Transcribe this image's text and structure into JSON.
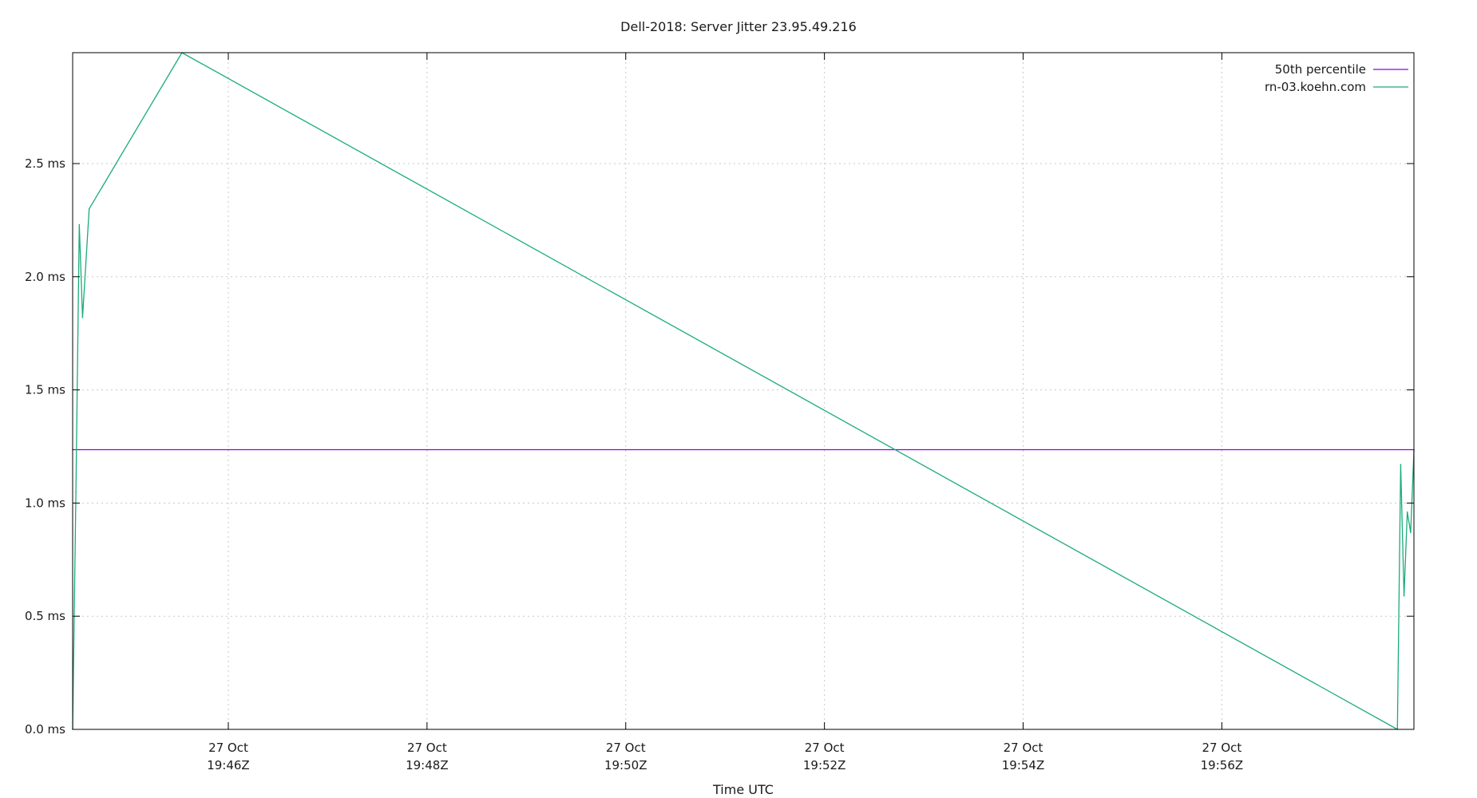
{
  "chart_data": {
    "type": "line",
    "title": "Dell-2018: Server Jitter 23.95.49.216",
    "xlabel": "Time UTC",
    "ylabel": "",
    "x_range": [
      "19:44:26Z",
      "19:57:56Z"
    ],
    "ylim": [
      0,
      2.99
    ],
    "y_unit": "ms",
    "y_ticks": [
      {
        "value": 0.0,
        "label": "0.0 ms"
      },
      {
        "value": 0.5,
        "label": "0.5 ms"
      },
      {
        "value": 1.0,
        "label": "1.0 ms"
      },
      {
        "value": 1.5,
        "label": "1.5 ms"
      },
      {
        "value": 2.0,
        "label": "2.0 ms"
      },
      {
        "value": 2.5,
        "label": "2.5 ms"
      }
    ],
    "x_ticks": [
      {
        "time": "19:46:00Z",
        "line1": "27 Oct",
        "line2": "19:46Z"
      },
      {
        "time": "19:48:00Z",
        "line1": "27 Oct",
        "line2": "19:48Z"
      },
      {
        "time": "19:50:00Z",
        "line1": "27 Oct",
        "line2": "19:50Z"
      },
      {
        "time": "19:52:00Z",
        "line1": "27 Oct",
        "line2": "19:52Z"
      },
      {
        "time": "19:54:00Z",
        "line1": "27 Oct",
        "line2": "19:54Z"
      },
      {
        "time": "19:56:00Z",
        "line1": "27 Oct",
        "line2": "19:56Z"
      }
    ],
    "grid": true,
    "legend_position": "top-right",
    "series": [
      {
        "name": "50th percentile",
        "color": "#9400d3",
        "points": [
          {
            "x": "19:44:26Z",
            "y": 1.236
          },
          {
            "x": "19:57:56Z",
            "y": 1.236
          }
        ]
      },
      {
        "name": "rn-03.koehn.com",
        "color": "#1aab7d",
        "points": [
          {
            "x": "19:44:26Z",
            "y": 0.0
          },
          {
            "x": "19:44:28Z",
            "y": 1.05
          },
          {
            "x": "19:44:30Z",
            "y": 2.23
          },
          {
            "x": "19:44:32Z",
            "y": 1.82
          },
          {
            "x": "19:44:36Z",
            "y": 2.3
          },
          {
            "x": "19:45:32Z",
            "y": 2.99
          },
          {
            "x": "19:57:46Z",
            "y": 0.0
          },
          {
            "x": "19:57:48Z",
            "y": 1.17
          },
          {
            "x": "19:57:50Z",
            "y": 0.59
          },
          {
            "x": "19:57:52Z",
            "y": 0.96
          },
          {
            "x": "19:57:54Z",
            "y": 0.87
          },
          {
            "x": "19:57:56Z",
            "y": 1.23
          }
        ]
      }
    ]
  }
}
